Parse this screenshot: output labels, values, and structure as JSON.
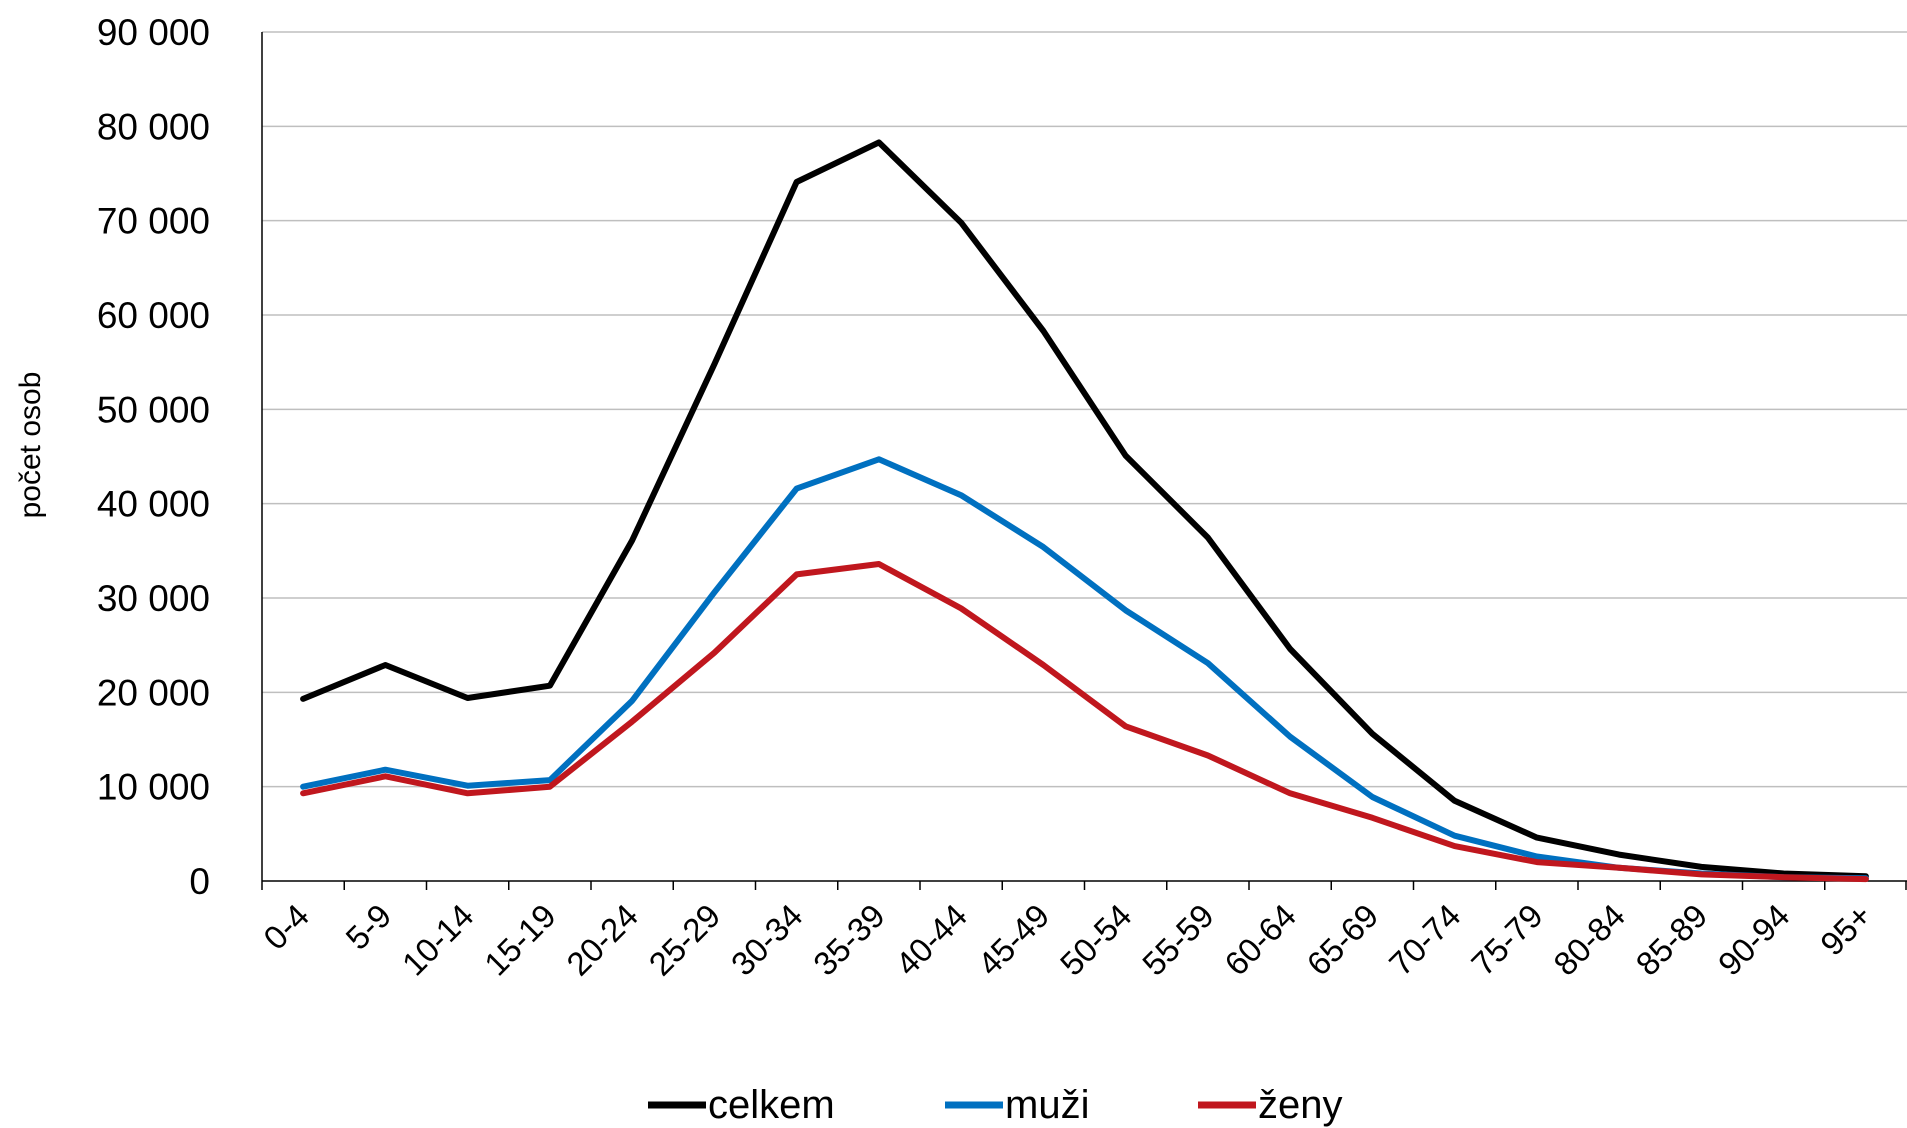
{
  "chart_data": {
    "type": "line",
    "title": "",
    "xlabel": "",
    "ylabel": "počet osob",
    "ylim": [
      0,
      90000
    ],
    "ytick_values": [
      0,
      10000,
      20000,
      30000,
      40000,
      50000,
      60000,
      70000,
      80000,
      90000
    ],
    "ytick_labels": [
      "0",
      "10 000",
      "20 000",
      "30 000",
      "40 000",
      "50 000",
      "60 000",
      "70 000",
      "80 000",
      "90 000"
    ],
    "grid": true,
    "legend_position": "bottom",
    "categories": [
      "0-4",
      "5-9",
      "10-14",
      "15-19",
      "20-24",
      "25-29",
      "30-34",
      "35-39",
      "40-44",
      "45-49",
      "50-54",
      "55-59",
      "60-64",
      "65-69",
      "70-74",
      "75-79",
      "80-84",
      "85-89",
      "90-94",
      "95+"
    ],
    "series": [
      {
        "name": "celkem",
        "color": "#000000",
        "values": [
          19300,
          22900,
          19400,
          20700,
          36100,
          54800,
          74100,
          78300,
          69800,
          58300,
          45100,
          36400,
          24600,
          15600,
          8500,
          4600,
          2800,
          1500,
          800,
          500
        ]
      },
      {
        "name": "muži",
        "color": "#0070C0",
        "values": [
          10000,
          11800,
          10100,
          10700,
          19100,
          30600,
          41600,
          44700,
          40900,
          35400,
          28700,
          23100,
          15300,
          8900,
          4800,
          2600,
          1400,
          800,
          400,
          300
        ]
      },
      {
        "name": "ženy",
        "color": "#C0171E",
        "values": [
          9300,
          11100,
          9300,
          10000,
          16900,
          24200,
          32500,
          33600,
          28900,
          22900,
          16400,
          13300,
          9300,
          6700,
          3700,
          2000,
          1400,
          700,
          400,
          200
        ]
      }
    ]
  }
}
